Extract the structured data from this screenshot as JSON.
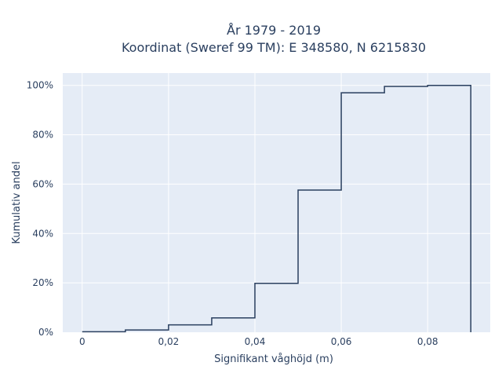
{
  "chart_data": {
    "type": "line",
    "line_shape": "step",
    "title_line1": "År 1979 - 2019",
    "title_line2": "Koordinat (Sweref 99 TM): E 348580, N 6215830",
    "xlabel": "Signifikant våghöjd (m)",
    "ylabel": "Kumulativ andel",
    "x_ticks": [
      {
        "value": 0,
        "label": "0"
      },
      {
        "value": 0.02,
        "label": "0,02"
      },
      {
        "value": 0.04,
        "label": "0,04"
      },
      {
        "value": 0.06,
        "label": "0,06"
      },
      {
        "value": 0.08,
        "label": "0,08"
      }
    ],
    "y_ticks": [
      {
        "value": 0,
        "label": "0%"
      },
      {
        "value": 20,
        "label": "20%"
      },
      {
        "value": 40,
        "label": "40%"
      },
      {
        "value": 60,
        "label": "60%"
      },
      {
        "value": 80,
        "label": "80%"
      },
      {
        "value": 100,
        "label": "100%"
      }
    ],
    "xlim": [
      -0.0045,
      0.0945
    ],
    "ylim": [
      0,
      105
    ],
    "grid": true,
    "series": [
      {
        "bin_edges": [
          0,
          0.01,
          0.02,
          0.03,
          0.04,
          0.05,
          0.06,
          0.07,
          0.08,
          0.09
        ],
        "values": [
          0.2,
          0.9,
          3.0,
          5.8,
          19.8,
          57.6,
          97.0,
          99.6,
          100.0
        ],
        "color": "#2a3f5f"
      }
    ]
  }
}
